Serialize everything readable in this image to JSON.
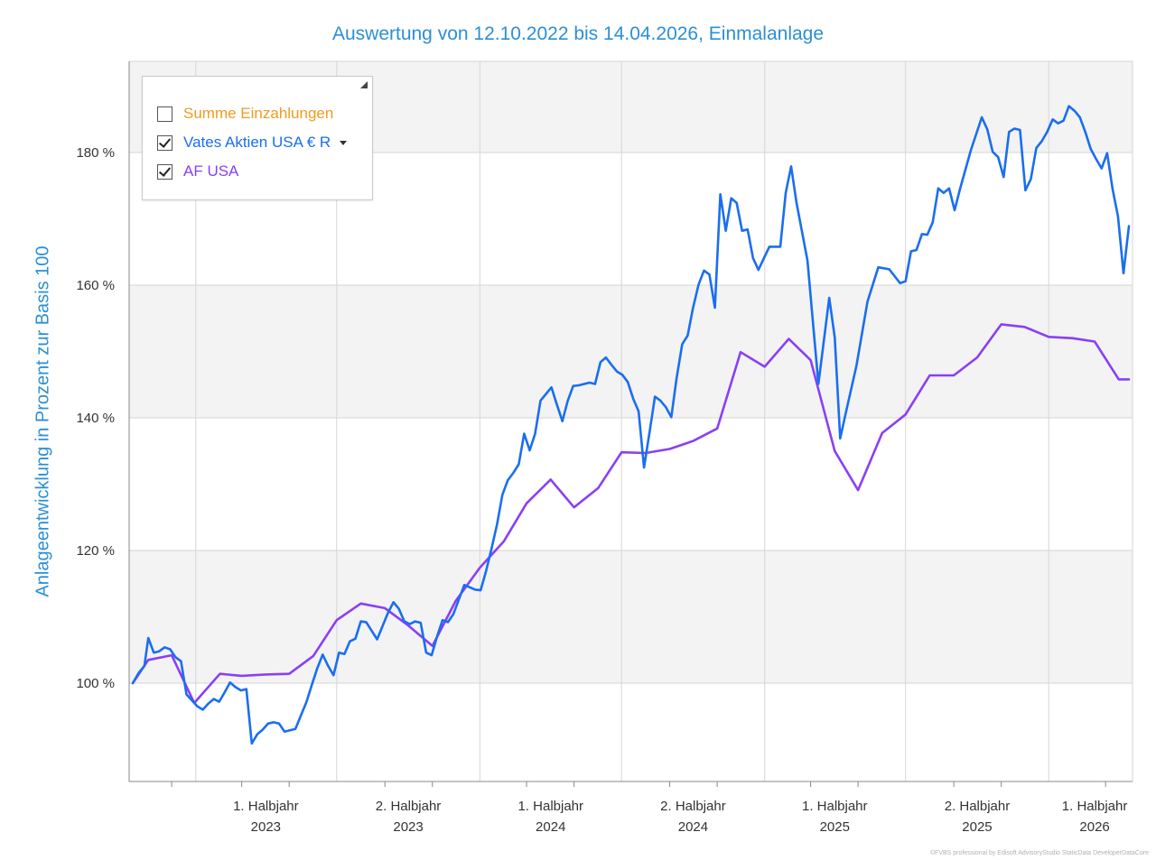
{
  "chart_data": {
    "type": "line",
    "title": "Auswertung von 12.10.2022 bis 14.04.2026, Einmalanlage",
    "ylabel": "Anlageentwicklung  in Prozent zur Basis 100",
    "ylim": [
      85,
      200
    ],
    "y_ticks": [
      100,
      120,
      140,
      160,
      180
    ],
    "y_tick_labels": [
      "100 %",
      "120 %",
      "140 %",
      "160 %",
      "180 %"
    ],
    "x_range": [
      "2022-10-12",
      "2026-04-14"
    ],
    "x_ticks": [
      {
        "label1": "1. Halbjahr",
        "label2": "2023"
      },
      {
        "label1": "2. Halbjahr",
        "label2": "2023"
      },
      {
        "label1": "1. Halbjahr",
        "label2": "2024"
      },
      {
        "label1": "2. Halbjahr",
        "label2": "2024"
      },
      {
        "label1": "1. Halbjahr",
        "label2": "2025"
      },
      {
        "label1": "2. Halbjahr",
        "label2": "2025"
      },
      {
        "label1": "1. Halbjahr",
        "label2": "2026"
      }
    ],
    "grid": true,
    "legend_position": "top-left",
    "series": [
      {
        "name": "Vates Aktien USA € R",
        "color": "#1a6ef0",
        "points": [
          [
            "2022-10-12",
            100.0
          ],
          [
            "2022-10-20",
            101.6
          ],
          [
            "2022-10-27",
            102.6
          ],
          [
            "2022-11-01",
            106.8
          ],
          [
            "2022-11-08",
            104.6
          ],
          [
            "2022-11-15",
            104.8
          ],
          [
            "2022-11-22",
            105.4
          ],
          [
            "2022-11-29",
            105.1
          ],
          [
            "2022-12-06",
            103.9
          ],
          [
            "2022-12-13",
            103.3
          ],
          [
            "2022-12-20",
            98.3
          ],
          [
            "2022-12-27",
            97.4
          ],
          [
            "2023-01-03",
            96.5
          ],
          [
            "2023-01-10",
            96.0
          ],
          [
            "2023-01-17",
            96.9
          ],
          [
            "2023-01-24",
            97.6
          ],
          [
            "2023-01-31",
            97.2
          ],
          [
            "2023-02-07",
            98.6
          ],
          [
            "2023-02-14",
            100.1
          ],
          [
            "2023-02-21",
            99.4
          ],
          [
            "2023-02-28",
            98.9
          ],
          [
            "2023-03-07",
            99.1
          ],
          [
            "2023-03-14",
            90.9
          ],
          [
            "2023-03-21",
            92.3
          ],
          [
            "2023-03-28",
            93.0
          ],
          [
            "2023-04-04",
            93.9
          ],
          [
            "2023-04-11",
            94.1
          ],
          [
            "2023-04-18",
            93.9
          ],
          [
            "2023-04-25",
            92.7
          ],
          [
            "2023-05-02",
            92.9
          ],
          [
            "2023-05-09",
            93.1
          ],
          [
            "2023-05-16",
            95.1
          ],
          [
            "2023-05-23",
            97.1
          ],
          [
            "2023-05-30",
            99.7
          ],
          [
            "2023-06-06",
            102.2
          ],
          [
            "2023-06-13",
            104.3
          ],
          [
            "2023-06-20",
            102.6
          ],
          [
            "2023-06-27",
            101.2
          ],
          [
            "2023-07-04",
            104.6
          ],
          [
            "2023-07-11",
            104.4
          ],
          [
            "2023-07-18",
            106.3
          ],
          [
            "2023-07-25",
            106.7
          ],
          [
            "2023-08-01",
            109.3
          ],
          [
            "2023-08-08",
            109.2
          ],
          [
            "2023-08-15",
            107.9
          ],
          [
            "2023-08-22",
            106.6
          ],
          [
            "2023-08-29",
            108.6
          ],
          [
            "2023-09-05",
            110.6
          ],
          [
            "2023-09-12",
            112.2
          ],
          [
            "2023-09-19",
            111.2
          ],
          [
            "2023-09-26",
            109.3
          ],
          [
            "2023-10-03",
            108.9
          ],
          [
            "2023-10-10",
            109.3
          ],
          [
            "2023-10-17",
            109.1
          ],
          [
            "2023-10-24",
            104.6
          ],
          [
            "2023-10-31",
            104.2
          ],
          [
            "2023-11-07",
            107.0
          ],
          [
            "2023-11-14",
            109.5
          ],
          [
            "2023-11-21",
            109.2
          ],
          [
            "2023-11-28",
            110.4
          ],
          [
            "2023-12-12",
            114.8
          ],
          [
            "2023-12-26",
            114.1
          ],
          [
            "2024-01-02",
            114.0
          ],
          [
            "2024-01-09",
            116.9
          ],
          [
            "2024-01-16",
            120.3
          ],
          [
            "2024-01-23",
            123.9
          ],
          [
            "2024-01-30",
            128.4
          ],
          [
            "2024-02-06",
            130.6
          ],
          [
            "2024-02-13",
            131.7
          ],
          [
            "2024-02-20",
            133.0
          ],
          [
            "2024-02-27",
            137.6
          ],
          [
            "2024-03-05",
            135.1
          ],
          [
            "2024-03-12",
            137.6
          ],
          [
            "2024-03-19",
            142.6
          ],
          [
            "2024-03-26",
            143.6
          ],
          [
            "2024-04-02",
            144.6
          ],
          [
            "2024-04-09",
            142.0
          ],
          [
            "2024-04-16",
            139.5
          ],
          [
            "2024-04-23",
            142.6
          ],
          [
            "2024-04-30",
            144.8
          ],
          [
            "2024-05-07",
            144.9
          ],
          [
            "2024-05-14",
            145.1
          ],
          [
            "2024-05-21",
            145.3
          ],
          [
            "2024-05-28",
            145.1
          ],
          [
            "2024-06-04",
            148.4
          ],
          [
            "2024-06-11",
            149.1
          ],
          [
            "2024-06-18",
            148.0
          ],
          [
            "2024-06-25",
            147.0
          ],
          [
            "2024-07-02",
            146.5
          ],
          [
            "2024-07-09",
            145.4
          ],
          [
            "2024-07-16",
            142.9
          ],
          [
            "2024-07-23",
            141.0
          ],
          [
            "2024-07-30",
            132.5
          ],
          [
            "2024-08-06",
            137.8
          ],
          [
            "2024-08-13",
            143.2
          ],
          [
            "2024-08-20",
            142.6
          ],
          [
            "2024-08-27",
            141.6
          ],
          [
            "2024-09-03",
            140.1
          ],
          [
            "2024-09-10",
            146.1
          ],
          [
            "2024-09-17",
            151.1
          ],
          [
            "2024-09-24",
            152.4
          ],
          [
            "2024-10-01",
            156.6
          ],
          [
            "2024-10-08",
            160.1
          ],
          [
            "2024-10-15",
            162.2
          ],
          [
            "2024-10-22",
            161.6
          ],
          [
            "2024-10-29",
            156.6
          ],
          [
            "2024-11-05",
            173.7
          ],
          [
            "2024-11-12",
            168.2
          ],
          [
            "2024-11-19",
            173.1
          ],
          [
            "2024-11-26",
            172.4
          ],
          [
            "2024-12-03",
            168.2
          ],
          [
            "2024-12-10",
            168.4
          ],
          [
            "2024-12-17",
            164.1
          ],
          [
            "2024-12-24",
            162.3
          ],
          [
            "2024-12-31",
            164.1
          ],
          [
            "2025-01-07",
            165.8
          ],
          [
            "2025-01-21",
            165.8
          ],
          [
            "2025-01-28",
            173.9
          ],
          [
            "2025-02-04",
            177.9
          ],
          [
            "2025-02-11",
            172.4
          ],
          [
            "2025-02-25",
            163.7
          ],
          [
            "2025-03-11",
            145.1
          ],
          [
            "2025-03-25",
            158.1
          ],
          [
            "2025-04-01",
            152.1
          ],
          [
            "2025-04-08",
            136.9
          ],
          [
            "2025-04-15",
            140.6
          ],
          [
            "2025-04-29",
            147.9
          ],
          [
            "2025-05-13",
            157.5
          ],
          [
            "2025-05-27",
            162.7
          ],
          [
            "2025-06-10",
            162.4
          ],
          [
            "2025-06-24",
            160.3
          ],
          [
            "2025-07-01",
            160.6
          ],
          [
            "2025-07-08",
            165.1
          ],
          [
            "2025-07-15",
            165.3
          ],
          [
            "2025-07-22",
            167.7
          ],
          [
            "2025-07-29",
            167.6
          ],
          [
            "2025-08-05",
            169.5
          ],
          [
            "2025-08-12",
            174.6
          ],
          [
            "2025-08-19",
            173.9
          ],
          [
            "2025-08-26",
            174.6
          ],
          [
            "2025-09-02",
            171.3
          ],
          [
            "2025-09-09",
            174.5
          ],
          [
            "2025-09-23",
            180.4
          ],
          [
            "2025-10-07",
            185.3
          ],
          [
            "2025-10-14",
            183.5
          ],
          [
            "2025-10-21",
            180.1
          ],
          [
            "2025-10-28",
            179.3
          ],
          [
            "2025-11-04",
            176.3
          ],
          [
            "2025-11-11",
            183.1
          ],
          [
            "2025-11-18",
            183.6
          ],
          [
            "2025-11-25",
            183.4
          ],
          [
            "2025-12-02",
            174.3
          ],
          [
            "2025-12-09",
            176.0
          ],
          [
            "2025-12-16",
            180.7
          ],
          [
            "2025-12-23",
            181.7
          ],
          [
            "2025-12-30",
            183.1
          ],
          [
            "2026-01-06",
            185.0
          ],
          [
            "2026-01-13",
            184.4
          ],
          [
            "2026-01-20",
            184.8
          ],
          [
            "2026-01-27",
            187.0
          ],
          [
            "2026-02-03",
            186.3
          ],
          [
            "2026-02-10",
            185.3
          ],
          [
            "2026-02-17",
            183.1
          ],
          [
            "2026-02-24",
            180.5
          ],
          [
            "2026-03-03",
            179.0
          ],
          [
            "2026-03-10",
            177.6
          ],
          [
            "2026-03-17",
            179.9
          ],
          [
            "2026-03-24",
            174.5
          ],
          [
            "2026-03-31",
            170.4
          ],
          [
            "2026-04-07",
            161.8
          ],
          [
            "2026-04-14",
            168.9
          ]
        ]
      },
      {
        "name": "AF USA",
        "color": "#8a3ff5",
        "points": [
          [
            "2022-10-12",
            100.0
          ],
          [
            "2022-11-01",
            103.5
          ],
          [
            "2022-12-01",
            104.2
          ],
          [
            "2022-12-30",
            97.0
          ],
          [
            "2023-02-01",
            101.4
          ],
          [
            "2023-03-01",
            101.1
          ],
          [
            "2023-04-01",
            101.3
          ],
          [
            "2023-05-01",
            101.4
          ],
          [
            "2023-06-01",
            104.1
          ],
          [
            "2023-07-01",
            109.5
          ],
          [
            "2023-08-01",
            112.0
          ],
          [
            "2023-09-01",
            111.3
          ],
          [
            "2023-10-01",
            108.7
          ],
          [
            "2023-11-01",
            105.6
          ],
          [
            "2023-12-01",
            112.4
          ],
          [
            "2024-01-01",
            117.4
          ],
          [
            "2024-02-01",
            121.4
          ],
          [
            "2024-03-01",
            127.1
          ],
          [
            "2024-04-01",
            130.7
          ],
          [
            "2024-05-01",
            126.5
          ],
          [
            "2024-06-01",
            129.4
          ],
          [
            "2024-07-01",
            134.8
          ],
          [
            "2024-08-01",
            134.7
          ],
          [
            "2024-09-01",
            135.3
          ],
          [
            "2024-10-01",
            136.5
          ],
          [
            "2024-11-01",
            138.4
          ],
          [
            "2024-12-01",
            149.9
          ],
          [
            "2025-01-01",
            147.7
          ],
          [
            "2025-02-01",
            151.9
          ],
          [
            "2025-03-01",
            148.7
          ],
          [
            "2025-04-01",
            135.0
          ],
          [
            "2025-05-01",
            129.1
          ],
          [
            "2025-06-01",
            137.7
          ],
          [
            "2025-07-01",
            140.5
          ],
          [
            "2025-08-01",
            146.4
          ],
          [
            "2025-09-01",
            146.4
          ],
          [
            "2025-10-01",
            149.1
          ],
          [
            "2025-11-01",
            154.1
          ],
          [
            "2025-12-01",
            153.7
          ],
          [
            "2026-01-01",
            152.2
          ],
          [
            "2026-02-01",
            152.0
          ],
          [
            "2026-03-01",
            151.5
          ],
          [
            "2026-04-01",
            145.8
          ],
          [
            "2026-04-14",
            145.8
          ]
        ]
      }
    ]
  },
  "legend": {
    "items": [
      {
        "label": "Summe Einzahlungen",
        "checked": false,
        "color": "#f29a1e"
      },
      {
        "label": "Vates Aktien USA € R",
        "checked": true,
        "color": "#1a6ef0"
      },
      {
        "label": "AF USA",
        "checked": true,
        "color": "#8a3ff5"
      }
    ]
  },
  "footer": {
    "copyright": "©FVBS professional by Edisoft AdvisoryStudio StaticData DeveloperDataCore"
  }
}
